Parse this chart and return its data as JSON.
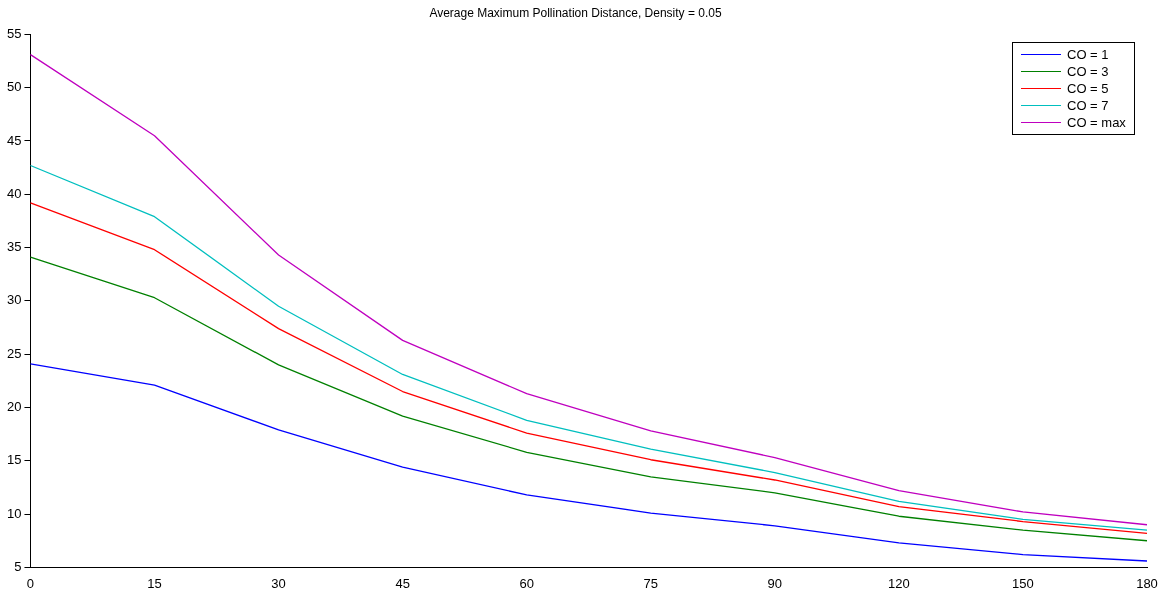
{
  "chart_data": {
    "type": "line",
    "title": "Average Maximum Pollination Distance, Density = 0.05",
    "categories": [
      "0",
      "15",
      "30",
      "45",
      "60",
      "75",
      "90",
      "120",
      "150",
      "180"
    ],
    "series": [
      {
        "name": "CO = 1",
        "color": "#0000ff",
        "values": [
          24.1,
          22.1,
          17.9,
          14.4,
          11.8,
          10.1,
          8.9,
          7.3,
          6.2,
          5.6
        ]
      },
      {
        "name": "CO = 3",
        "color": "#008000",
        "values": [
          34.1,
          30.3,
          24.0,
          19.2,
          15.8,
          13.5,
          12.0,
          9.8,
          8.5,
          7.5
        ]
      },
      {
        "name": "CO = 5",
        "color": "#ff0000",
        "values": [
          39.2,
          34.8,
          27.4,
          21.5,
          17.6,
          15.1,
          13.2,
          10.7,
          9.3,
          8.2
        ]
      },
      {
        "name": "CO = 7",
        "color": "#00bfbf",
        "values": [
          42.7,
          37.9,
          29.5,
          23.1,
          18.8,
          16.1,
          13.9,
          11.2,
          9.5,
          8.5
        ]
      },
      {
        "name": "CO = max",
        "color": "#bf00bf",
        "values": [
          53.1,
          45.5,
          34.3,
          26.3,
          21.3,
          17.8,
          15.3,
          12.2,
          10.2,
          9.0
        ]
      }
    ],
    "ylim": [
      5,
      55
    ],
    "yticks": [
      5,
      10,
      15,
      20,
      25,
      30,
      35,
      40,
      45,
      50,
      55
    ],
    "grid": false,
    "legend": "top right",
    "marker": "none",
    "line_style": "solid"
  }
}
